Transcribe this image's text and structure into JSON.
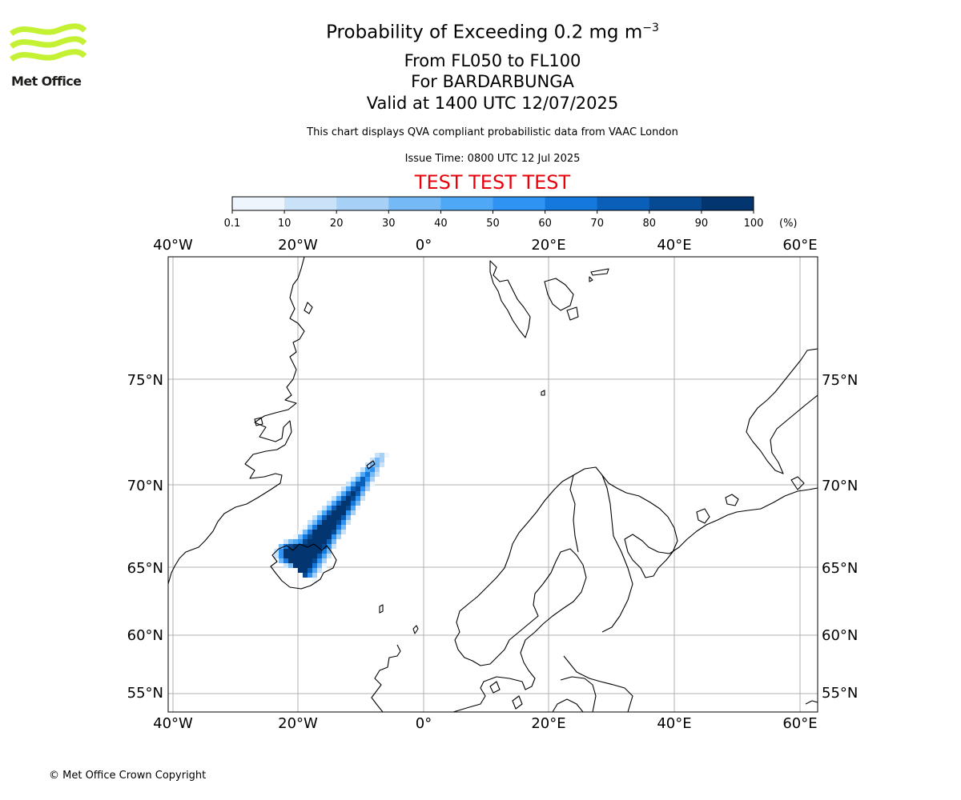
{
  "header": {
    "title": "Probability of Exceeding 0.2 mg m",
    "title_exponent": "−3",
    "level_range": "From FL050 to FL100",
    "volcano": "For BARDARBUNGA",
    "valid_time": "Valid at 1400 UTC 12/07/2025",
    "note": "This chart displays QVA compliant probabilistic data from VAAC London",
    "issue_time": "Issue Time: 0800 UTC 12 Jul 2025",
    "test_banner": "TEST TEST TEST"
  },
  "logo": {
    "text": "Met Office",
    "color": "#c4f134"
  },
  "colorbar": {
    "ticks": [
      "0.1",
      "10",
      "20",
      "30",
      "40",
      "50",
      "60",
      "70",
      "80",
      "90",
      "100"
    ],
    "unit": "(%)",
    "colors": [
      "#eef5fd",
      "#c9e2f8",
      "#a7d0f6",
      "#75b9f6",
      "#4ea8f6",
      "#2e93f3",
      "#1478dc",
      "#0a5fb8",
      "#064a94",
      "#033570"
    ]
  },
  "map": {
    "lon_labels": [
      "40°W",
      "20°W",
      "0°",
      "20°E",
      "40°E",
      "60°E"
    ],
    "lat_labels": [
      "75°N",
      "70°N",
      "65°N",
      "60°N",
      "55°N"
    ],
    "gridline_color": "#b0b0b0"
  },
  "footer": {
    "copyright": "© Met Office Crown Copyright"
  }
}
